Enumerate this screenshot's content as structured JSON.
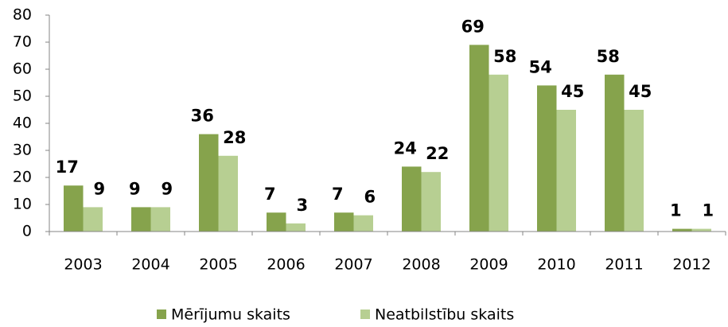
{
  "chart_data": {
    "type": "bar",
    "categories": [
      "2003",
      "2004",
      "2005",
      "2006",
      "2007",
      "2008",
      "2009",
      "2010",
      "2011",
      "2012"
    ],
    "series": [
      {
        "name": "Mērījumu skaits",
        "color": "#86a34c",
        "values": [
          17,
          9,
          36,
          7,
          7,
          24,
          69,
          54,
          58,
          1
        ]
      },
      {
        "name": "Neatbilstību skaits",
        "color": "#b7cf92",
        "values": [
          9,
          9,
          28,
          3,
          6,
          22,
          58,
          45,
          45,
          1
        ]
      }
    ],
    "ylim": [
      0,
      80
    ],
    "yticks": [
      0,
      10,
      20,
      30,
      40,
      50,
      60,
      70,
      80
    ],
    "grid": false,
    "legend": "bottom"
  }
}
